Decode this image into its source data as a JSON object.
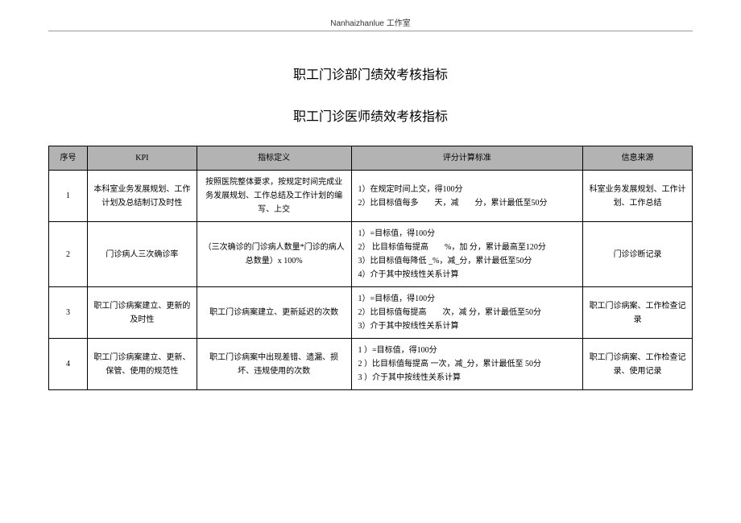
{
  "header": {
    "label": "Nanhaizhanlue 工作室"
  },
  "title_main": "职工门诊部门绩效考核指标",
  "title_sub": "职工门诊医师绩效考核指标",
  "columns": {
    "seq": "序号",
    "kpi": "KPI",
    "def": "指标定义",
    "score": "评分计算标准",
    "src": "信息来源"
  },
  "rows": [
    {
      "seq": "1",
      "kpi": "本科室业务发展规划、工作计划及总结制订及时性",
      "def": "按照医院整体要求，按规定时间完成业务发展规划、工作总结及工作计划的编写、上交",
      "score": "1）在规定时间上交，得100分\n2）比目标值每多　　天，减　　分，累计最低至50分",
      "src": "科室业务发展规划、工作计划、工作总结"
    },
    {
      "seq": "2",
      "kpi": "门诊病人三次确诊率",
      "def": "（三次确诊的门诊病人数量*门诊的病人总数量）x 100%",
      "score": "1）=目标值，得100分\n2） 比目标值每提高　　%，加 分，累计最高至120分\n3）比目标值每降低 _%，减_分，累计最低至50分\n4）介于其中按线性关系计算",
      "src": "门诊诊断记录"
    },
    {
      "seq": "3",
      "kpi": "职工门诊病案建立、更新的及时性",
      "def": "职工门诊病案建立、更新延迟的次数",
      "score": "1）=目标值，得100分\n2）比目标值每提高　　次，减 分，累计最低至50分\n3）介于其中按线性关系计算",
      "src": "职工门诊病案、工作检查记录"
    },
    {
      "seq": "4",
      "kpi": "职工门诊病案建立、更新、保管、使用的规范性",
      "def": "职工门诊病案中出现差错、遗漏、损坏、违规使用的次数",
      "score": "1 ）=目标值，得100分\n2 ）比目标值每提高 一次，减_分，累计最低至 50分\n3 ）介于其中按线性关系计算",
      "src": "职工门诊病案、工作检查记录、使用记录"
    }
  ]
}
